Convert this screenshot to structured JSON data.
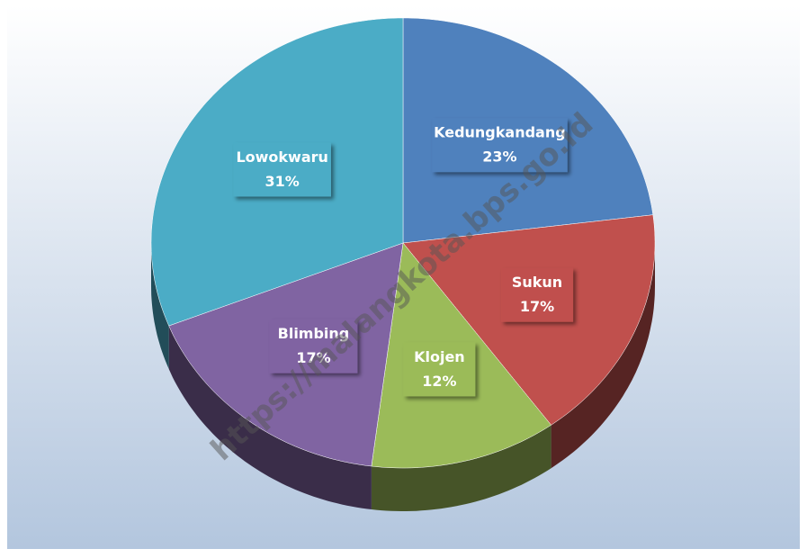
{
  "chart_data": {
    "type": "pie",
    "categories": [
      "Kedungkandang",
      "Sukun",
      "Klojen",
      "Blimbing",
      "Lowokwaru"
    ],
    "values": [
      23,
      17,
      12,
      17,
      31
    ],
    "value_labels": [
      "23%",
      "17%",
      "12%",
      "17%",
      "31%"
    ],
    "colors": [
      "#4f81bd",
      "#c0504d",
      "#9bbb59",
      "#8064a2",
      "#4bacc6"
    ],
    "watermark": "https://malangkota.bps.go.id"
  }
}
